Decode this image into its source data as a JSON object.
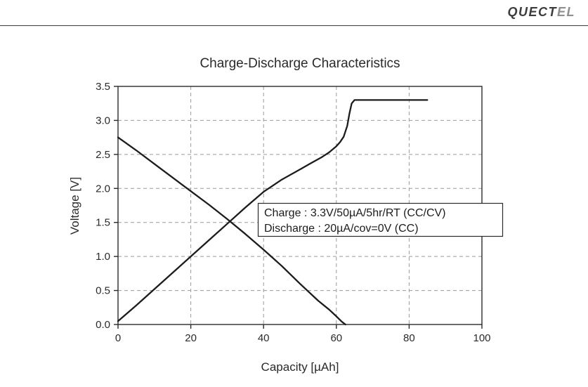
{
  "header": {
    "brand_primary": "QUECT",
    "brand_secondary": "EL"
  },
  "chart_data": {
    "type": "line",
    "title": "Charge-Discharge Characteristics",
    "xlabel": "Capacity [µAh]",
    "ylabel": "Voltage [V]",
    "xlim": [
      0,
      100
    ],
    "ylim": [
      0,
      3.5
    ],
    "xticks": [
      0,
      20,
      40,
      60,
      80,
      100
    ],
    "yticks": [
      0.0,
      0.5,
      1.0,
      1.5,
      2.0,
      2.5,
      3.0,
      3.5
    ],
    "grid": true,
    "legend_position": "none",
    "series": [
      {
        "name": "Charge",
        "x": [
          0,
          5,
          10,
          15,
          20,
          25,
          30,
          35,
          40,
          45,
          50,
          53,
          56,
          58,
          60,
          61,
          62,
          63,
          63.6,
          64.2,
          65,
          85
        ],
        "y": [
          0.05,
          0.28,
          0.52,
          0.76,
          1.0,
          1.24,
          1.48,
          1.72,
          1.95,
          2.13,
          2.28,
          2.37,
          2.46,
          2.53,
          2.62,
          2.68,
          2.76,
          2.92,
          3.1,
          3.25,
          3.3,
          3.3
        ]
      },
      {
        "name": "Discharge",
        "x": [
          0,
          5,
          10,
          15,
          20,
          25,
          30,
          35,
          40,
          45,
          50,
          55,
          58,
          60,
          61.5,
          62.5
        ],
        "y": [
          2.75,
          2.56,
          2.36,
          2.16,
          1.96,
          1.76,
          1.55,
          1.33,
          1.1,
          0.86,
          0.6,
          0.35,
          0.22,
          0.12,
          0.04,
          0.0
        ]
      }
    ],
    "annotation": {
      "lines": [
        "Charge : 3.3V/50µA/5hr/RT (CC/CV)",
        "Discharge : 20µA/cov=0V (CC)"
      ]
    }
  }
}
